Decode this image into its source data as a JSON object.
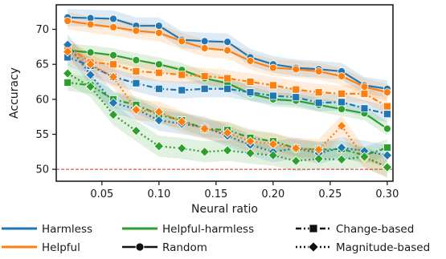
{
  "chart_data": {
    "type": "line",
    "xlabel": "Neural ratio",
    "ylabel": "Accuracy",
    "xlim": [
      0.01,
      0.305
    ],
    "ylim": [
      48.3,
      73.5
    ],
    "x_ticks": [
      0.05,
      0.1,
      0.15,
      0.2,
      0.25,
      0.3
    ],
    "x_tick_labels": [
      "0.05",
      "0.10",
      "0.15",
      "0.20",
      "0.25",
      "0.30"
    ],
    "y_ticks": [
      50,
      55,
      60,
      65,
      70
    ],
    "y_tick_labels": [
      "50",
      "55",
      "60",
      "65",
      "70"
    ],
    "reference_line": {
      "y": 50,
      "color": "#d62728",
      "style": "dashed"
    },
    "x": [
      0.02,
      0.04,
      0.06,
      0.08,
      0.1,
      0.12,
      0.14,
      0.16,
      0.18,
      0.2,
      0.22,
      0.24,
      0.26,
      0.28,
      0.3
    ],
    "series": [
      {
        "name": "Harmless",
        "method": "Random",
        "color": "#1f77b4",
        "marker": "circle",
        "dash": "solid",
        "band": 1.2,
        "values": [
          71.7,
          71.6,
          71.5,
          70.5,
          70.5,
          68.5,
          68.3,
          68.2,
          66.0,
          65.0,
          64.5,
          64.3,
          64.0,
          62.0,
          61.5
        ]
      },
      {
        "name": "Helpful",
        "method": "Random",
        "color": "#ff7f0e",
        "marker": "circle",
        "dash": "solid",
        "band": 1.2,
        "values": [
          71.2,
          70.7,
          70.3,
          69.8,
          69.5,
          68.3,
          67.3,
          67.0,
          65.5,
          64.5,
          64.3,
          64.0,
          63.3,
          61.8,
          61.0
        ]
      },
      {
        "name": "Helpful-harmless",
        "method": "Random",
        "color": "#2ca02c",
        "marker": "circle",
        "dash": "solid",
        "band": 1.0,
        "values": [
          67.0,
          66.7,
          66.3,
          65.6,
          65.0,
          64.2,
          63.0,
          62.3,
          60.8,
          60.0,
          59.8,
          59.2,
          58.6,
          58.0,
          55.8
        ]
      },
      {
        "name": "Harmless",
        "method": "Change-based",
        "color": "#1f77b4",
        "marker": "square",
        "dash": "dashdot",
        "band": 1.2,
        "values": [
          66.0,
          64.8,
          63.2,
          62.3,
          61.5,
          61.3,
          61.5,
          61.5,
          61.0,
          60.5,
          60.3,
          59.5,
          59.6,
          58.7,
          57.9
        ]
      },
      {
        "name": "Helpful",
        "method": "Change-based",
        "color": "#ff7f0e",
        "marker": "square",
        "dash": "dashdot",
        "band": 1.2,
        "values": [
          67.5,
          65.3,
          65.0,
          64.0,
          63.8,
          63.5,
          63.3,
          63.0,
          62.5,
          62.0,
          61.4,
          61.0,
          60.8,
          60.8,
          59.0
        ]
      },
      {
        "name": "Helpful-harmless",
        "method": "Change-based",
        "color": "#2ca02c",
        "marker": "square",
        "dash": "dashdot",
        "band": 1.2,
        "values": [
          62.4,
          62.0,
          60.0,
          59.2,
          57.8,
          57.0,
          55.8,
          55.6,
          54.5,
          54.0,
          53.0,
          52.8,
          52.9,
          52.0,
          53.1
        ]
      },
      {
        "name": "Harmless",
        "method": "Magnitude-based",
        "color": "#1f77b4",
        "marker": "diamond",
        "dash": "dotted",
        "band": 1.5,
        "values": [
          67.8,
          63.5,
          59.5,
          58.6,
          57.0,
          56.5,
          56.0,
          54.8,
          53.5,
          52.5,
          53.0,
          52.3,
          53.1,
          52.6,
          52.0
        ]
      },
      {
        "name": "Helpful",
        "method": "Magnitude-based",
        "color": "#ff7f0e",
        "marker": "diamond",
        "dash": "dotted",
        "band": 1.5,
        "values": [
          66.8,
          65.0,
          63.2,
          58.5,
          58.2,
          56.8,
          55.8,
          55.2,
          54.0,
          53.6,
          53.0,
          52.8,
          56.2,
          51.6,
          50.4
        ]
      },
      {
        "name": "Helpful-harmless",
        "method": "Magnitude-based",
        "color": "#2ca02c",
        "marker": "diamond",
        "dash": "dotted",
        "band": 1.5,
        "values": [
          63.7,
          61.8,
          57.8,
          55.5,
          53.3,
          53.0,
          52.5,
          52.7,
          52.3,
          52.0,
          51.2,
          51.5,
          51.4,
          51.8,
          50.3
        ]
      }
    ],
    "legend": {
      "placement": "bottom",
      "entries": [
        {
          "label": "Harmless",
          "kind": "color",
          "color": "#1f77b4"
        },
        {
          "label": "Helpful",
          "kind": "color",
          "color": "#ff7f0e"
        },
        {
          "label": "Helpful-harmless",
          "kind": "color",
          "color": "#2ca02c"
        },
        {
          "label": "Random",
          "kind": "style",
          "marker": "circle",
          "dash": "solid"
        },
        {
          "label": "Change-based",
          "kind": "style",
          "marker": "square",
          "dash": "dashdot"
        },
        {
          "label": "Magnitude-based",
          "kind": "style",
          "marker": "diamond",
          "dash": "dotted"
        }
      ]
    }
  }
}
